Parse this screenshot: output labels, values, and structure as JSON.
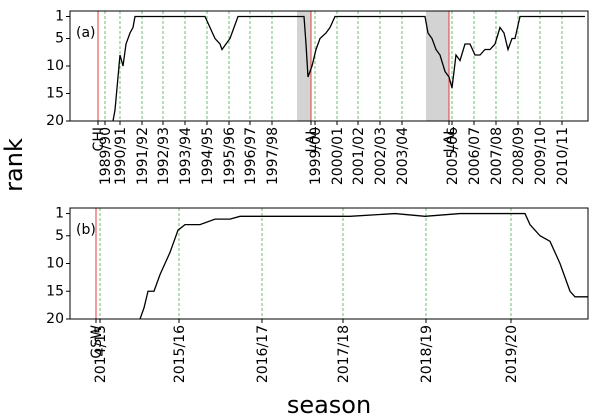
{
  "chart_data": [
    {
      "type": "line",
      "panel_label": "(a)",
      "ylabel": "rank",
      "xlim": [
        0,
        518
      ],
      "ylim": [
        20,
        0
      ],
      "yticks": [
        1,
        5,
        10,
        15,
        20
      ],
      "xticks": [
        {
          "value": 28,
          "label": "CHI"
        },
        {
          "value": 35,
          "label": "1989/90"
        },
        {
          "value": 50,
          "label": "1990/91"
        },
        {
          "value": 72,
          "label": "1991/92"
        },
        {
          "value": 93,
          "label": "1992/93"
        },
        {
          "value": 115,
          "label": "1993/94"
        },
        {
          "value": 137,
          "label": "1994/95"
        },
        {
          "value": 159,
          "label": "1995/96"
        },
        {
          "value": 180,
          "label": "1996/97"
        },
        {
          "value": 202,
          "label": "1997/98"
        },
        {
          "value": 241,
          "label": "LAL"
        },
        {
          "value": 245,
          "label": "1999/00"
        },
        {
          "value": 267,
          "label": "2000/01"
        },
        {
          "value": 288,
          "label": "2001/02"
        },
        {
          "value": 310,
          "label": "2002/03"
        },
        {
          "value": 332,
          "label": "2003/04"
        },
        {
          "value": 379,
          "label": "LAL"
        },
        {
          "value": 382,
          "label": "2005/06"
        },
        {
          "value": 404,
          "label": "2006/07"
        },
        {
          "value": 426,
          "label": "2007/08"
        },
        {
          "value": 448,
          "label": "2008/09"
        },
        {
          "value": 470,
          "label": "2009/10"
        },
        {
          "value": 492,
          "label": "2010/11"
        }
      ],
      "team_lines": [
        28,
        241,
        379
      ],
      "team_line_color": "#e8393a",
      "grid_color": "#4caf50",
      "spans": [
        [
          227,
          241
        ],
        [
          356,
          379
        ]
      ],
      "span_color": "#d3d3d3",
      "series": [
        {
          "color": "#000000",
          "x": [
            43,
            45,
            47,
            50,
            53,
            56,
            60,
            63,
            65,
            135,
            140,
            145,
            150,
            152,
            156,
            160,
            164,
            168,
            234,
            236,
            238,
            242,
            246,
            250,
            256,
            260,
            265,
            355,
            358,
            362,
            366,
            370,
            375,
            379,
            382,
            386,
            390,
            395,
            400,
            405,
            410,
            415,
            420,
            425,
            430,
            434,
            438,
            442,
            445,
            450,
            515
          ],
          "values": [
            20,
            18,
            14,
            8,
            10,
            6,
            4,
            3,
            1,
            1,
            3,
            5,
            6,
            7,
            6,
            5,
            3,
            1,
            1,
            6,
            12,
            10,
            7,
            5,
            4,
            3,
            1,
            1,
            4,
            5,
            7,
            8,
            11,
            12,
            14,
            8,
            9,
            6,
            6,
            8,
            8,
            7,
            7,
            6,
            3,
            4,
            7,
            5,
            5,
            1,
            1
          ]
        }
      ]
    },
    {
      "type": "line",
      "panel_label": "(b)",
      "xlabel": "season",
      "xlim": [
        0,
        518
      ],
      "ylim": [
        20,
        0
      ],
      "yticks": [
        1,
        5,
        10,
        15,
        20
      ],
      "xticks": [
        {
          "value": 26,
          "label": "GSW"
        },
        {
          "value": 30,
          "label": "2014/15"
        },
        {
          "value": 109,
          "label": "2015/16"
        },
        {
          "value": 192,
          "label": "2016/17"
        },
        {
          "value": 273,
          "label": "2017/18"
        },
        {
          "value": 356,
          "label": "2018/19"
        },
        {
          "value": 441,
          "label": "2019/20"
        }
      ],
      "team_lines": [
        26
      ],
      "team_line_color": "#e8393a",
      "grid_color": "#4caf50",
      "spans": [],
      "span_color": "#d3d3d3",
      "series": [
        {
          "color": "#000000",
          "x": [
            70,
            74,
            78,
            84,
            90,
            95,
            100,
            104,
            108,
            115,
            130,
            145,
            160,
            170,
            230,
            280,
            325,
            355,
            390,
            420,
            455,
            460,
            465,
            470,
            480,
            490,
            500,
            505,
            518
          ],
          "values": [
            20,
            18,
            15,
            15,
            12,
            10,
            8,
            6,
            4,
            3,
            3,
            2,
            2,
            1.5,
            1.5,
            1.5,
            1,
            1.5,
            1,
            1,
            1,
            3,
            4,
            5,
            6,
            10,
            15,
            16,
            16
          ]
        }
      ]
    }
  ]
}
